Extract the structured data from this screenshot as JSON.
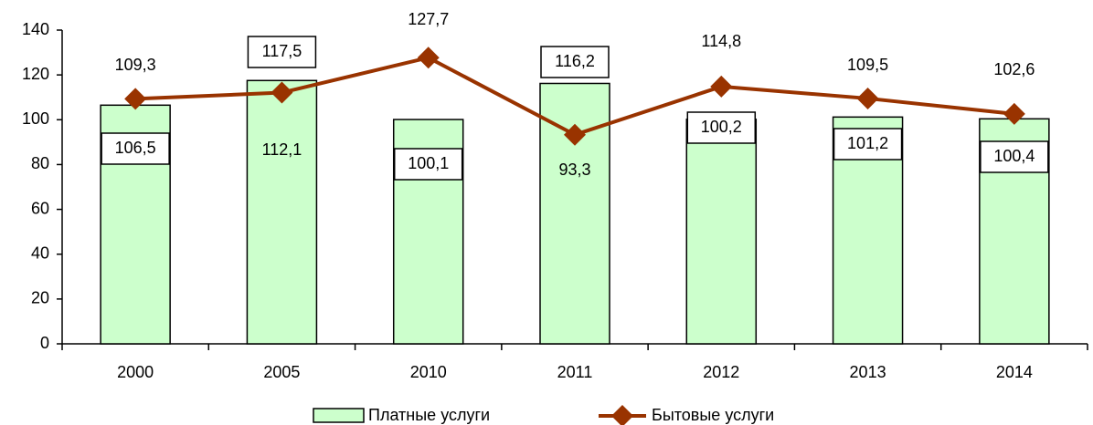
{
  "chart_data": {
    "type": "bar",
    "categories": [
      "2000",
      "2005",
      "2010",
      "2011",
      "2012",
      "2013",
      "2014"
    ],
    "series": [
      {
        "name": "Платные услуги",
        "type": "bar",
        "color": "#ccffcc",
        "values": [
          106.5,
          117.5,
          100.1,
          116.2,
          100.2,
          101.2,
          100.4
        ],
        "value_labels": [
          "106,5",
          "117,5",
          "100,1",
          "116,2",
          "100,2",
          "101,2",
          "100,4"
        ]
      },
      {
        "name": "Бытовые услуги",
        "type": "line",
        "color": "#993300",
        "values": [
          109.3,
          112.1,
          127.7,
          93.3,
          114.8,
          109.5,
          102.6
        ],
        "value_labels": [
          "109,3",
          "112,1",
          "127,7",
          "93,3",
          "114,8",
          "109,5",
          "102,6"
        ]
      }
    ],
    "ylim": [
      0,
      140
    ],
    "yticks": [
      0,
      20,
      40,
      60,
      80,
      100,
      120,
      140
    ],
    "grid": false,
    "legend": "bottom"
  }
}
